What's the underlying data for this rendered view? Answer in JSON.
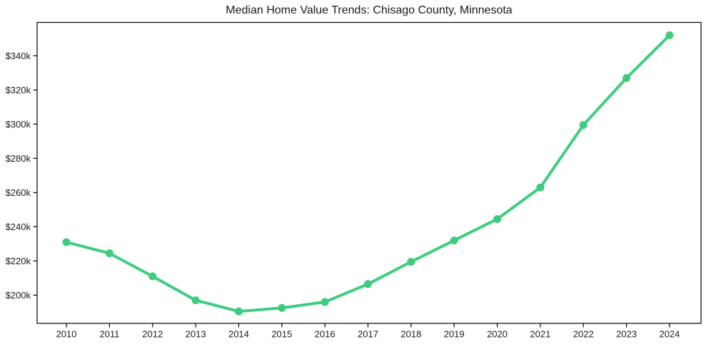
{
  "title": "Median Home Value Trends: Chisago County, Minnesota",
  "chart_data": {
    "type": "line",
    "title": "Median Home Value Trends: Chisago County, Minnesota",
    "xlabel": "",
    "ylabel": "",
    "x": [
      2010,
      2011,
      2012,
      2013,
      2014,
      2015,
      2016,
      2017,
      2018,
      2019,
      2020,
      2021,
      2022,
      2023,
      2024
    ],
    "series": [
      {
        "name": "Median Home Value",
        "values": [
          231,
          224.5,
          211,
          197,
          190.5,
          192.5,
          196,
          206.5,
          219.5,
          232,
          244.5,
          263,
          299.5,
          327,
          352
        ]
      }
    ],
    "value_unit": "USD thousands",
    "x_tick_labels": [
      "2010",
      "2011",
      "2012",
      "2013",
      "2014",
      "2015",
      "2016",
      "2017",
      "2018",
      "2019",
      "2020",
      "2021",
      "2022",
      "2023",
      "2024"
    ],
    "y_ticks": [
      200,
      220,
      240,
      260,
      280,
      300,
      320,
      340
    ],
    "y_tick_labels": [
      "$200k",
      "$220k",
      "$240k",
      "$260k",
      "$280k",
      "$300k",
      "$320k",
      "$340k"
    ],
    "xlim": [
      2009.32,
      2024.73
    ],
    "ylim": [
      183.5,
      359.5
    ],
    "grid": false,
    "legend": false,
    "line_color": "#3ecd7f",
    "marker": "circle",
    "background_color": "#ffffff",
    "spine_color": "#000000"
  }
}
